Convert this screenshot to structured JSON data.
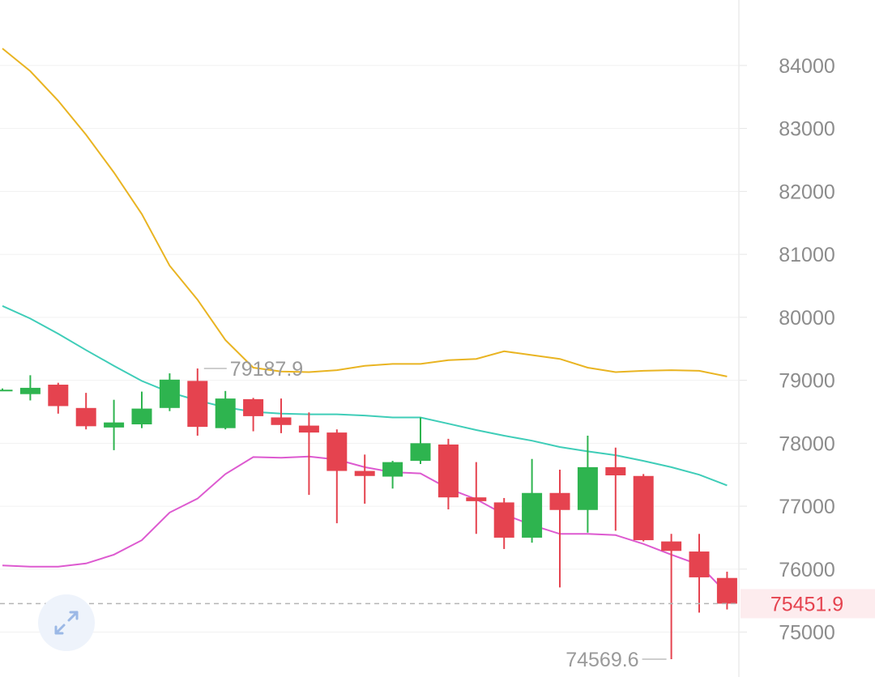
{
  "chart_data": {
    "type": "candlestick",
    "title": "",
    "xlabel": "",
    "ylabel": "",
    "ylim": [
      74570,
      85040
    ],
    "y_ticks": [
      "84000",
      "83000",
      "82000",
      "81000",
      "80000",
      "79000",
      "78000",
      "77000",
      "76000",
      "75000"
    ],
    "grid": true,
    "colors": {
      "up": "#2eb44f",
      "down": "#e5434f",
      "band_upper": "#e9b422",
      "band_middle": "#3fcdb8",
      "band_lower": "#dd5ad0",
      "last_price": "#e5434f"
    },
    "candles": [
      {
        "open": 78850,
        "high": 78870,
        "low": 78830,
        "close": 78850
      },
      {
        "open": 78780,
        "high": 79080,
        "low": 78680,
        "close": 78880
      },
      {
        "open": 78930,
        "high": 78960,
        "low": 78470,
        "close": 78590
      },
      {
        "open": 78560,
        "high": 78800,
        "low": 78220,
        "close": 78270
      },
      {
        "open": 78250,
        "high": 78690,
        "low": 77890,
        "close": 78330
      },
      {
        "open": 78300,
        "high": 78820,
        "low": 78240,
        "close": 78550
      },
      {
        "open": 78560,
        "high": 79110,
        "low": 78510,
        "close": 79010
      },
      {
        "open": 78990,
        "high": 79187.9,
        "low": 78120,
        "close": 78260
      },
      {
        "open": 78240,
        "high": 78830,
        "low": 78220,
        "close": 78710
      },
      {
        "open": 78700,
        "high": 78720,
        "low": 78190,
        "close": 78430
      },
      {
        "open": 78410,
        "high": 78710,
        "low": 78160,
        "close": 78290
      },
      {
        "open": 78280,
        "high": 78490,
        "low": 77180,
        "close": 78170
      },
      {
        "open": 78170,
        "high": 78220,
        "low": 76730,
        "close": 77560
      },
      {
        "open": 77560,
        "high": 77820,
        "low": 77040,
        "close": 77480
      },
      {
        "open": 77470,
        "high": 77720,
        "low": 77280,
        "close": 77700
      },
      {
        "open": 77720,
        "high": 78410,
        "low": 77670,
        "close": 78000
      },
      {
        "open": 77980,
        "high": 78070,
        "low": 76950,
        "close": 77140
      },
      {
        "open": 77140,
        "high": 77700,
        "low": 76560,
        "close": 77080
      },
      {
        "open": 77060,
        "high": 77130,
        "low": 76320,
        "close": 76500
      },
      {
        "open": 76500,
        "high": 77750,
        "low": 76420,
        "close": 77210
      },
      {
        "open": 77210,
        "high": 77580,
        "low": 75710,
        "close": 76940
      },
      {
        "open": 76940,
        "high": 78120,
        "low": 76580,
        "close": 77620
      },
      {
        "open": 77620,
        "high": 77930,
        "low": 76610,
        "close": 77490
      },
      {
        "open": 77480,
        "high": 77510,
        "low": 76440,
        "close": 76460
      },
      {
        "open": 76440,
        "high": 76560,
        "low": 74569.6,
        "close": 76290
      },
      {
        "open": 76280,
        "high": 76560,
        "low": 75310,
        "close": 75870
      },
      {
        "open": 75860,
        "high": 75960,
        "low": 75360,
        "close": 75451.9
      }
    ],
    "band_upper": [
      84270,
      83910,
      83440,
      82900,
      82300,
      81640,
      80820,
      80280,
      79640,
      79200,
      79140,
      79130,
      79160,
      79230,
      79260,
      79260,
      79320,
      79340,
      79460,
      79400,
      79340,
      79200,
      79130,
      79150,
      79160,
      79150,
      79060
    ],
    "band_middle": [
      80180,
      79980,
      79740,
      79480,
      79230,
      78990,
      78810,
      78680,
      78570,
      78500,
      78470,
      78460,
      78460,
      78440,
      78410,
      78410,
      78310,
      78210,
      78120,
      78040,
      77940,
      77870,
      77810,
      77720,
      77620,
      77500,
      77330
    ],
    "band_lower": [
      76060,
      76040,
      76040,
      76090,
      76230,
      76460,
      76900,
      77120,
      77510,
      77780,
      77770,
      77790,
      77740,
      77620,
      77540,
      77520,
      77280,
      77110,
      76870,
      76700,
      76560,
      76560,
      76540,
      76400,
      76230,
      76070,
      75610
    ],
    "high_marker": "79187.9",
    "low_marker": "74569.6",
    "last_price": "75451.9"
  },
  "controls": {
    "expand_icon": "expand-arrows-icon"
  }
}
